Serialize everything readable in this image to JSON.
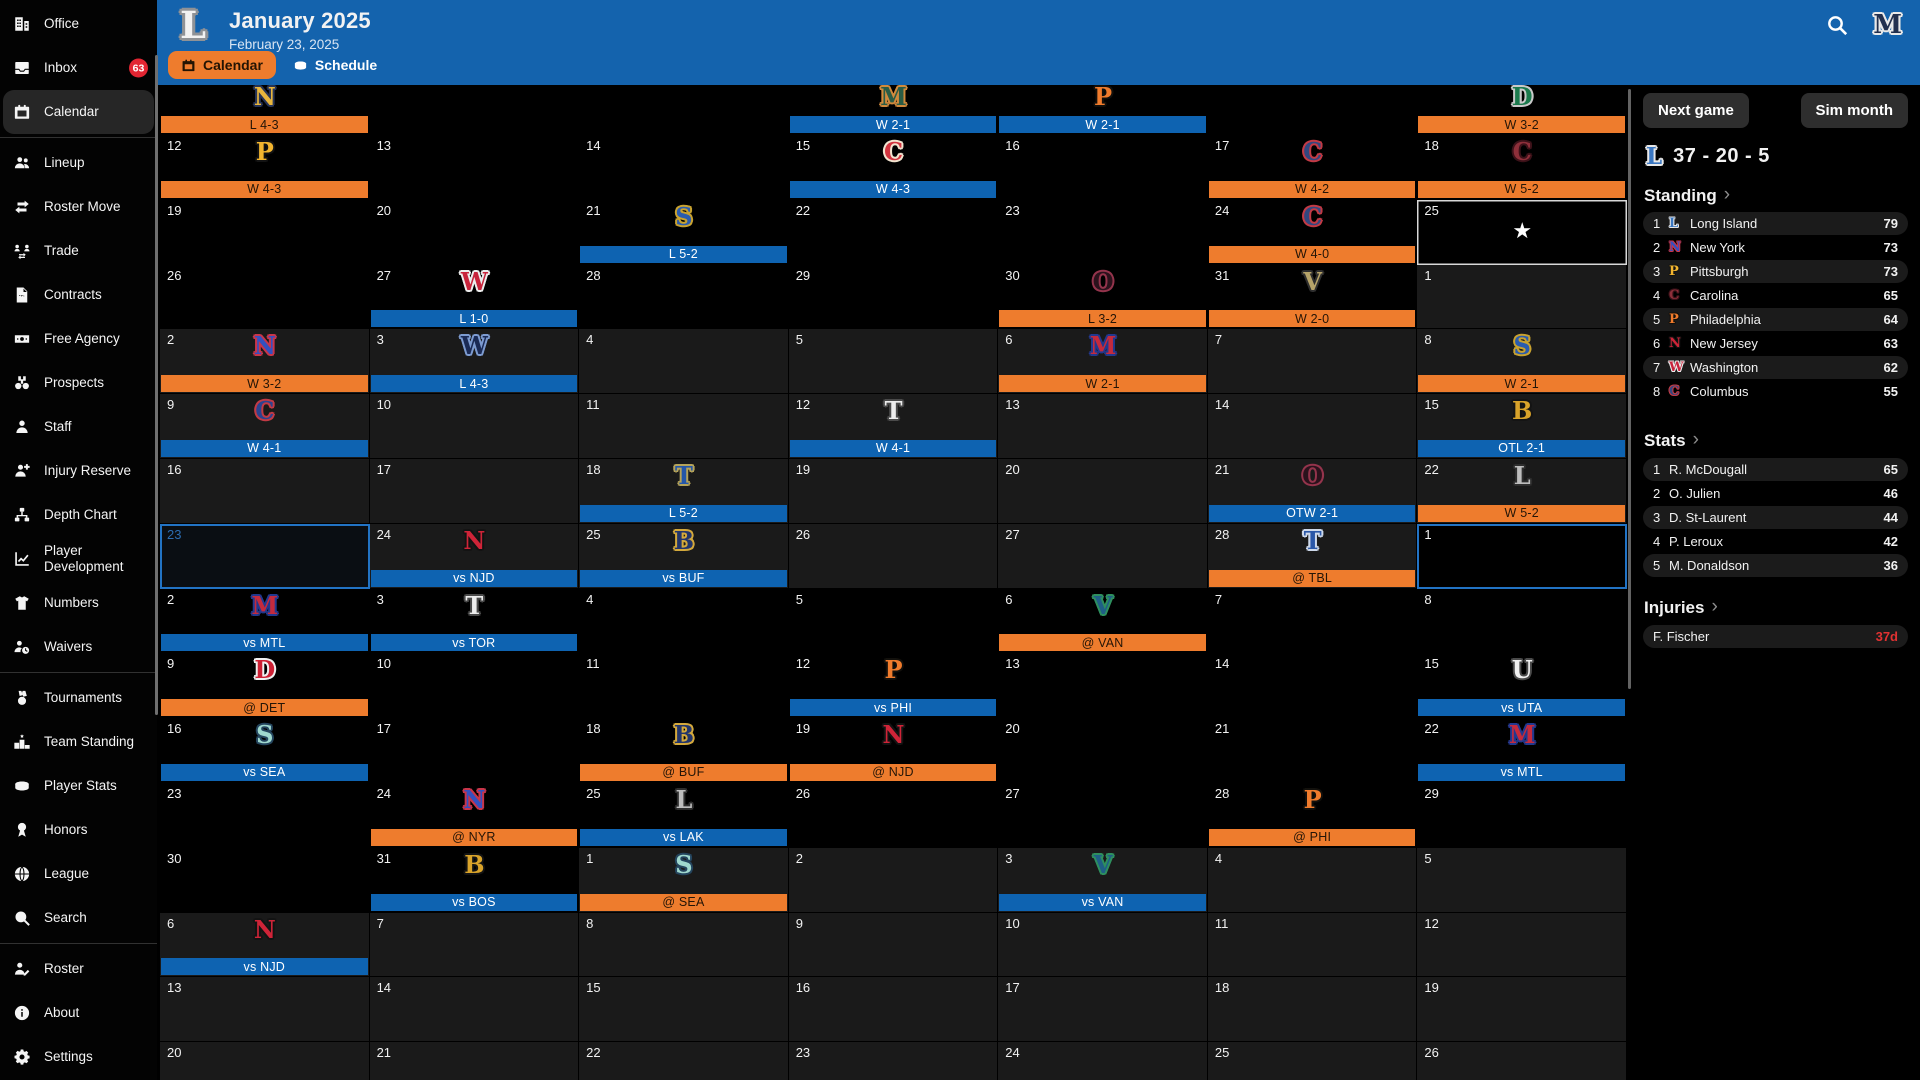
{
  "header": {
    "team_logo": "L",
    "title": "January 2025",
    "subtitle": "February 23, 2025",
    "tabs": [
      {
        "label": "Calendar",
        "active": true
      },
      {
        "label": "Schedule",
        "active": false
      }
    ],
    "corner_logo": "M"
  },
  "actions": {
    "next_game": "Next game",
    "sim_month": "Sim month"
  },
  "sidebar": {
    "items": [
      {
        "icon": "office",
        "label": "Office"
      },
      {
        "icon": "inbox",
        "label": "Inbox",
        "badge": "63"
      },
      {
        "icon": "calendar",
        "label": "Calendar",
        "active": true
      },
      {
        "divider": true
      },
      {
        "icon": "lineup",
        "label": "Lineup"
      },
      {
        "icon": "roster-move",
        "label": "Roster Move"
      },
      {
        "icon": "trade",
        "label": "Trade"
      },
      {
        "icon": "contracts",
        "label": "Contracts"
      },
      {
        "icon": "free-agency",
        "label": "Free Agency"
      },
      {
        "icon": "prospects",
        "label": "Prospects"
      },
      {
        "icon": "staff",
        "label": "Staff"
      },
      {
        "icon": "injury-reserve",
        "label": "Injury Reserve"
      },
      {
        "icon": "depth-chart",
        "label": "Depth Chart"
      },
      {
        "icon": "player-development",
        "label": "Player Development"
      },
      {
        "icon": "numbers",
        "label": "Numbers"
      },
      {
        "icon": "waivers",
        "label": "Waivers"
      },
      {
        "divider": true
      },
      {
        "icon": "tournaments",
        "label": "Tournaments"
      },
      {
        "icon": "team-standing",
        "label": "Team Standing"
      },
      {
        "icon": "player-stats",
        "label": "Player Stats"
      },
      {
        "icon": "honors",
        "label": "Honors"
      },
      {
        "icon": "league",
        "label": "League"
      },
      {
        "icon": "search",
        "label": "Search"
      },
      {
        "divider": true
      },
      {
        "icon": "roster",
        "label": "Roster"
      },
      {
        "icon": "about",
        "label": "About"
      },
      {
        "icon": "settings",
        "label": "Settings"
      }
    ]
  },
  "panel": {
    "record": "37 - 20 - 5",
    "standing": {
      "title": "Standing",
      "rows": [
        {
          "rank": "1",
          "team": "Long Island",
          "pts": "79",
          "lg": {
            "t": "L",
            "f": "#3a77c2",
            "o": "#e8e8e8"
          }
        },
        {
          "rank": "2",
          "team": "New York",
          "pts": "73",
          "lg": {
            "t": "N",
            "f": "#3450c0",
            "o": "#c8354a"
          }
        },
        {
          "rank": "3",
          "team": "Pittsburgh",
          "pts": "73",
          "lg": {
            "t": "P",
            "f": "#f2b52f",
            "o": "#131313"
          }
        },
        {
          "rank": "4",
          "team": "Carolina",
          "pts": "65",
          "lg": {
            "t": "C",
            "f": "#8e2f3a",
            "o": "#3c1219"
          }
        },
        {
          "rank": "5",
          "team": "Philadelphia",
          "pts": "64",
          "lg": {
            "t": "P",
            "f": "#ef7b2c",
            "o": "#12100c"
          }
        },
        {
          "rank": "6",
          "team": "New Jersey",
          "pts": "63",
          "lg": {
            "t": "N",
            "f": "#cf2438",
            "o": "#131313"
          }
        },
        {
          "rank": "7",
          "team": "Washington",
          "pts": "62",
          "lg": {
            "t": "W",
            "f": "#c8243c",
            "o": "#ececec"
          }
        },
        {
          "rank": "8",
          "team": "Columbus",
          "pts": "55",
          "lg": {
            "t": "C",
            "f": "#32477f",
            "o": "#c23a45"
          }
        }
      ]
    },
    "stats": {
      "title": "Stats",
      "rows": [
        {
          "rank": "1",
          "player": "R. McDougall",
          "val": "65"
        },
        {
          "rank": "2",
          "player": "O. Julien",
          "val": "46"
        },
        {
          "rank": "3",
          "player": "D. St-Laurent",
          "val": "44"
        },
        {
          "rank": "4",
          "player": "P. Leroux",
          "val": "42"
        },
        {
          "rank": "5",
          "player": "M. Donaldson",
          "val": "36"
        }
      ]
    },
    "injuries": {
      "title": "Injuries",
      "rows": [
        {
          "player": "F. Fischer",
          "val": "37d"
        }
      ]
    }
  },
  "calendar": {
    "weeks": [
      [
        {
          "g": {
            "t": "N",
            "f": "#e9b63c",
            "o": "#273457",
            "bar": "o",
            "txt": "L 4-3"
          }
        },
        {},
        {},
        {
          "g": {
            "t": "M",
            "f": "#2a5c45",
            "o": "#d18a3d",
            "bar": "b",
            "txt": "W 2-1"
          }
        },
        {
          "g": {
            "t": "P",
            "f": "#ef7b2c",
            "o": "#12100c",
            "bar": "b",
            "txt": "W 2-1"
          }
        },
        {},
        {
          "g": {
            "t": "D",
            "f": "#1b7a4d",
            "o": "#c9c9c9",
            "bar": "o",
            "txt": "W 3-2"
          }
        }
      ],
      [
        {
          "d": "12",
          "g": {
            "t": "P",
            "f": "#f2b52f",
            "o": "#131313",
            "bar": "o",
            "txt": "W 4-3"
          }
        },
        {
          "d": "13"
        },
        {
          "d": "14"
        },
        {
          "d": "15",
          "g": {
            "t": "C",
            "f": "#d2343f",
            "o": "#f2e3cf",
            "bar": "b",
            "txt": "W 4-3"
          }
        },
        {
          "d": "16"
        },
        {
          "d": "17",
          "g": {
            "t": "C",
            "f": "#32477f",
            "o": "#c23a45",
            "bar": "o",
            "txt": "W 4-2"
          }
        },
        {
          "d": "18",
          "g": {
            "t": "C",
            "f": "#8e2f3a",
            "o": "#3c1219",
            "bar": "o",
            "txt": "W 5-2"
          }
        }
      ],
      [
        {
          "d": "19"
        },
        {
          "d": "20"
        },
        {
          "d": "21",
          "g": {
            "t": "S",
            "f": "#2a5cae",
            "o": "#c9a22f",
            "bar": "b",
            "txt": "L 5-2"
          }
        },
        {
          "d": "22"
        },
        {
          "d": "23"
        },
        {
          "d": "24",
          "g": {
            "t": "C",
            "f": "#32477f",
            "o": "#c23a45",
            "bar": "o",
            "txt": "W 4-0"
          }
        },
        {
          "d": "25",
          "star": true
        }
      ],
      [
        {
          "d": "26"
        },
        {
          "d": "27",
          "g": {
            "t": "W",
            "f": "#c8243c",
            "o": "#ececec",
            "bar": "b",
            "txt": "L 1-0"
          }
        },
        {
          "d": "28"
        },
        {
          "d": "29"
        },
        {
          "d": "30",
          "g": {
            "t": "O",
            "f": "#2b121c",
            "o": "#94344c",
            "bar": "o",
            "txt": "L 3-2"
          }
        },
        {
          "d": "31",
          "g": {
            "t": "V",
            "f": "#b6a369",
            "o": "#2e2e2e",
            "bar": "o",
            "txt": "W 2-0"
          }
        },
        {
          "d": "1",
          "alt": true
        }
      ],
      [
        {
          "d": "2",
          "alt": true,
          "g": {
            "t": "N",
            "f": "#3450c0",
            "o": "#c8354a",
            "bar": "o",
            "txt": "W 3-2"
          }
        },
        {
          "d": "3",
          "alt": true,
          "g": {
            "t": "W",
            "f": "#1a2a55",
            "o": "#7d9bd0",
            "bar": "b",
            "txt": "L 4-3"
          }
        },
        {
          "d": "4",
          "alt": true
        },
        {
          "d": "5",
          "alt": true
        },
        {
          "d": "6",
          "alt": true,
          "g": {
            "t": "M",
            "f": "#c42a3d",
            "o": "#22388f",
            "bar": "o",
            "txt": "W 2-1"
          }
        },
        {
          "d": "7",
          "alt": true
        },
        {
          "d": "8",
          "alt": true,
          "g": {
            "t": "S",
            "f": "#2a5cae",
            "o": "#c9a22f",
            "bar": "o",
            "txt": "W 2-1"
          }
        }
      ],
      [
        {
          "d": "9",
          "alt": true,
          "g": {
            "t": "C",
            "f": "#2c4390",
            "o": "#c23a45",
            "bar": "b",
            "txt": "W 4-1"
          }
        },
        {
          "d": "10",
          "alt": true
        },
        {
          "d": "11",
          "alt": true
        },
        {
          "d": "12",
          "alt": true,
          "g": {
            "t": "T",
            "f": "#ededed",
            "o": "#4a4a4a",
            "bar": "b",
            "txt": "W 4-1"
          }
        },
        {
          "d": "13",
          "alt": true
        },
        {
          "d": "14",
          "alt": true
        },
        {
          "d": "15",
          "alt": true,
          "g": {
            "t": "B",
            "f": "#d9a32a",
            "o": "#141414",
            "bar": "b",
            "txt": "OTL 2-1"
          }
        }
      ],
      [
        {
          "d": "16",
          "alt": true
        },
        {
          "d": "17",
          "alt": true
        },
        {
          "d": "18",
          "alt": true,
          "g": {
            "t": "T",
            "f": "#2456a8",
            "o": "#b5a35a",
            "bar": "b",
            "txt": "L 5-2"
          }
        },
        {
          "d": "19",
          "alt": true
        },
        {
          "d": "20",
          "alt": true
        },
        {
          "d": "21",
          "alt": true,
          "g": {
            "t": "O",
            "f": "#2b121c",
            "o": "#94344c",
            "bar": "b",
            "txt": "OTW 2-1"
          }
        },
        {
          "d": "22",
          "alt": true,
          "g": {
            "t": "L",
            "f": "#bdbdbd",
            "o": "#2e2e2e",
            "bar": "o",
            "txt": "W 5-2"
          }
        }
      ],
      [
        {
          "d": "23",
          "alt": true,
          "today": true
        },
        {
          "d": "24",
          "alt": true,
          "g": {
            "t": "N",
            "f": "#cf2438",
            "o": "#131313",
            "bar": "b",
            "txt": "vs NJD"
          }
        },
        {
          "d": "25",
          "alt": true,
          "g": {
            "t": "B",
            "f": "#22356b",
            "o": "#d4a93c",
            "bar": "b",
            "txt": "vs BUF"
          }
        },
        {
          "d": "26",
          "alt": true
        },
        {
          "d": "27",
          "alt": true
        },
        {
          "d": "28",
          "alt": true,
          "g": {
            "t": "T",
            "f": "#2a57a8",
            "o": "#cdd8ea",
            "bar": "o",
            "txt": "@ TBL"
          }
        },
        {
          "d": "1",
          "sel": true
        }
      ],
      [
        {
          "d": "2",
          "g": {
            "t": "M",
            "f": "#c42a3d",
            "o": "#22388f",
            "bar": "b",
            "txt": "vs MTL"
          }
        },
        {
          "d": "3",
          "g": {
            "t": "T",
            "f": "#ededed",
            "o": "#4a4a4a",
            "bar": "b",
            "txt": "vs TOR"
          }
        },
        {
          "d": "4"
        },
        {
          "d": "5"
        },
        {
          "d": "6",
          "g": {
            "t": "V",
            "f": "#1f5f86",
            "o": "#2e8f5e",
            "bar": "o",
            "txt": "@ VAN"
          }
        },
        {
          "d": "7"
        },
        {
          "d": "8"
        }
      ],
      [
        {
          "d": "9",
          "g": {
            "t": "D",
            "f": "#ce2135",
            "o": "#f0f0f0",
            "bar": "o",
            "txt": "@ DET"
          }
        },
        {
          "d": "10"
        },
        {
          "d": "11"
        },
        {
          "d": "12",
          "g": {
            "t": "P",
            "f": "#ef7b2c",
            "o": "#12100c",
            "bar": "b",
            "txt": "vs PHI"
          }
        },
        {
          "d": "13"
        },
        {
          "d": "14"
        },
        {
          "d": "15",
          "g": {
            "t": "U",
            "f": "#f0f0f0",
            "o": "#4a4a4a",
            "bar": "b",
            "txt": "vs UTA"
          }
        }
      ],
      [
        {
          "d": "16",
          "g": {
            "t": "S",
            "f": "#9fd8ce",
            "o": "#24455e",
            "bar": "b",
            "txt": "vs SEA"
          }
        },
        {
          "d": "17"
        },
        {
          "d": "18",
          "g": {
            "t": "B",
            "f": "#22356b",
            "o": "#d4a93c",
            "bar": "o",
            "txt": "@ BUF"
          }
        },
        {
          "d": "19",
          "g": {
            "t": "N",
            "f": "#cf2438",
            "o": "#131313",
            "bar": "o",
            "txt": "@ NJD"
          }
        },
        {
          "d": "20"
        },
        {
          "d": "21"
        },
        {
          "d": "22",
          "g": {
            "t": "M",
            "f": "#c42a3d",
            "o": "#22388f",
            "bar": "b",
            "txt": "vs MTL"
          }
        }
      ],
      [
        {
          "d": "23"
        },
        {
          "d": "24",
          "g": {
            "t": "N",
            "f": "#3450c0",
            "o": "#c8354a",
            "bar": "o",
            "txt": "@ NYR"
          }
        },
        {
          "d": "25",
          "g": {
            "t": "L",
            "f": "#bdbdbd",
            "o": "#2e2e2e",
            "bar": "b",
            "txt": "vs LAK"
          }
        },
        {
          "d": "26"
        },
        {
          "d": "27"
        },
        {
          "d": "28",
          "g": {
            "t": "P",
            "f": "#ef7b2c",
            "o": "#12100c",
            "bar": "o",
            "txt": "@ PHI"
          }
        },
        {
          "d": "29"
        }
      ],
      [
        {
          "d": "30"
        },
        {
          "d": "31",
          "g": {
            "t": "B",
            "f": "#d9a32a",
            "o": "#141414",
            "bar": "b",
            "txt": "vs BOS"
          }
        },
        {
          "d": "1",
          "alt": true,
          "g": {
            "t": "S",
            "f": "#9fd8ce",
            "o": "#24455e",
            "bar": "o",
            "txt": "@ SEA"
          }
        },
        {
          "d": "2",
          "alt": true
        },
        {
          "d": "3",
          "alt": true,
          "g": {
            "t": "V",
            "f": "#1f5f86",
            "o": "#2e8f5e",
            "bar": "b",
            "txt": "vs VAN"
          }
        },
        {
          "d": "4",
          "alt": true
        },
        {
          "d": "5",
          "alt": true
        }
      ],
      [
        {
          "d": "6",
          "alt": true,
          "g": {
            "t": "N",
            "f": "#cf2438",
            "o": "#131313",
            "bar": "b",
            "txt": "vs NJD"
          }
        },
        {
          "d": "7",
          "alt": true
        },
        {
          "d": "8",
          "alt": true
        },
        {
          "d": "9",
          "alt": true
        },
        {
          "d": "10",
          "alt": true
        },
        {
          "d": "11",
          "alt": true
        },
        {
          "d": "12",
          "alt": true
        }
      ],
      [
        {
          "d": "13",
          "alt": true
        },
        {
          "d": "14",
          "alt": true
        },
        {
          "d": "15",
          "alt": true
        },
        {
          "d": "16",
          "alt": true
        },
        {
          "d": "17",
          "alt": true
        },
        {
          "d": "18",
          "alt": true
        },
        {
          "d": "19",
          "alt": true
        }
      ],
      [
        {
          "d": "20",
          "alt": true
        },
        {
          "d": "21",
          "alt": true
        },
        {
          "d": "22",
          "alt": true
        },
        {
          "d": "23",
          "alt": true
        },
        {
          "d": "24",
          "alt": true
        },
        {
          "d": "25",
          "alt": true
        },
        {
          "d": "26",
          "alt": true
        }
      ]
    ]
  }
}
